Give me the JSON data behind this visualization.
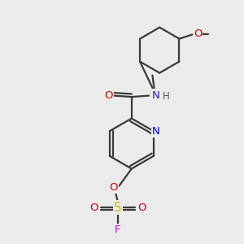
{
  "bg_color": "#ebebeb",
  "bond_color": "#3a3a3a",
  "bond_width": 1.6,
  "atom_colors": {
    "N_pyridine": "#0000cc",
    "N_amide": "#2222bb",
    "O_carbonyl": "#cc0000",
    "O_ether": "#cc0000",
    "O_sulfonyl": "#cc0000",
    "S": "#ccbb00",
    "F": "#cc00cc",
    "H": "#555555"
  },
  "font_size": 8.5,
  "fig_size": [
    3.0,
    3.0
  ],
  "dpi": 100,
  "xlim": [
    0,
    10
  ],
  "ylim": [
    0,
    10
  ]
}
